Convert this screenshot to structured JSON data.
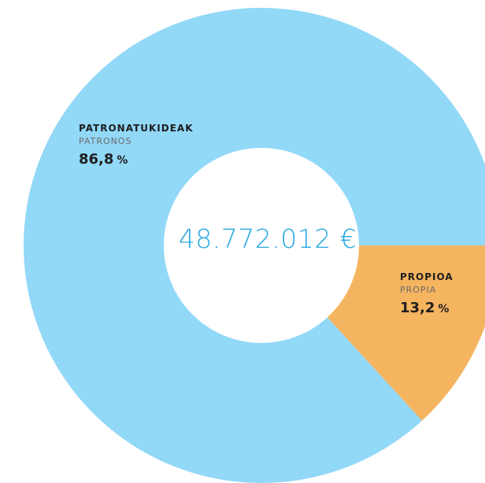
{
  "chart_data": {
    "type": "pie",
    "variant": "donut",
    "total_label": "48.772.012 €",
    "slices": [
      {
        "label_eu": "PATRONATUKIDEAK",
        "label_es": "PATRONOS",
        "value": 86.8,
        "display_value": "86,8",
        "unit": "%",
        "color": "#92d8f7"
      },
      {
        "label_eu": "PROPIOA",
        "label_es": "PROPIA",
        "value": 13.2,
        "display_value": "13,2",
        "unit": "%",
        "color": "#f5b45f"
      }
    ]
  }
}
